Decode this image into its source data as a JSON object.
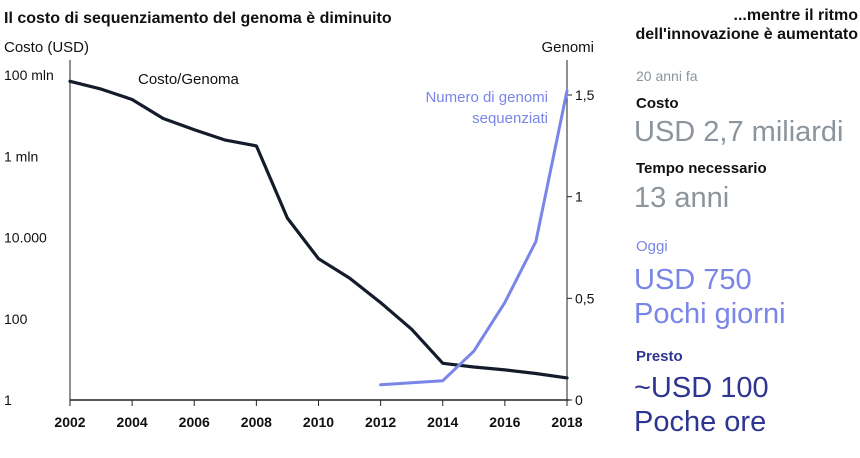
{
  "chart_data": {
    "type": "line",
    "title": "Il costo di sequenziamento del genoma è diminuito",
    "ylabel_left": "Costo (USD)",
    "ylabel_right": "Genomi",
    "y_left_scale": "log",
    "y_left_ticks": [
      {
        "value": 1,
        "label": "1"
      },
      {
        "value": 100,
        "label": "100"
      },
      {
        "value": 10000,
        "label": "10.000"
      },
      {
        "value": 1000000,
        "label": "1 mln"
      },
      {
        "value": 100000000,
        "label": "100 mln"
      }
    ],
    "y_right_ticks": [
      {
        "value": 0,
        "label": "0"
      },
      {
        "value": 0.5,
        "label": "0,5"
      },
      {
        "value": 1,
        "label": "1"
      },
      {
        "value": 1.5,
        "label": "1,5"
      }
    ],
    "x_ticks": [
      2002,
      2004,
      2006,
      2008,
      2010,
      2012,
      2014,
      2016,
      2018
    ],
    "xlim": [
      2002,
      2018
    ],
    "series": [
      {
        "name": "Costo/Genoma",
        "axis": "left",
        "color": "#141b2b",
        "x": [
          2002,
          2003,
          2004,
          2005,
          2006,
          2007,
          2008,
          2009,
          2010,
          2011,
          2012,
          2013,
          2014,
          2015,
          2016,
          2017,
          2018
        ],
        "y": [
          70000000,
          45000000,
          25000000,
          8500000,
          4500000,
          2500000,
          1800000,
          30000,
          3000,
          1000,
          250,
          55,
          8,
          6.5,
          5.5,
          4.5,
          3.5
        ]
      },
      {
        "name": "Numero di genomi\nsequenziati",
        "axis": "right",
        "color": "#7a85e8",
        "x": [
          2012,
          2013,
          2014,
          2015,
          2016,
          2017,
          2018
        ],
        "y": [
          0.075,
          0.085,
          0.095,
          0.24,
          0.48,
          0.78,
          1.52
        ]
      }
    ]
  },
  "panel": {
    "heading": "...mentre il ritmo\ndell'innovazione è aumentato",
    "past_label": "20 anni fa",
    "cost_label": "Costo",
    "past_cost": "USD 2,7 miliardi",
    "time_label": "Tempo necessario",
    "past_time": "13 anni",
    "today_label": "Oggi",
    "today_cost": "USD 750",
    "today_time": "Pochi giorni",
    "soon_label": "Presto",
    "soon_cost": "~USD 100",
    "soon_time": "Poche ore"
  },
  "colors": {
    "cost_line": "#141b2b",
    "genomes_line": "#7a85e8",
    "gray_text": "#8c949c",
    "dark_blue": "#2e3590"
  }
}
